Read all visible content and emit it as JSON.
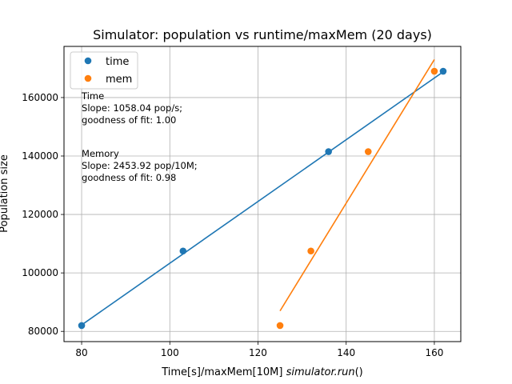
{
  "chart_data": {
    "type": "scatter",
    "title": "Simulator: population vs runtime/maxMem (20 days)",
    "xlabel_prefix": "Time[s]/maxMem[10M] ",
    "xlabel_italic": "simulator.run",
    "xlabel_suffix": "()",
    "ylabel": "Population size",
    "xlim": [
      76,
      166
    ],
    "ylim": [
      76500,
      177500
    ],
    "xticks": [
      80,
      100,
      120,
      140,
      160
    ],
    "yticks": [
      80000,
      100000,
      120000,
      140000,
      160000
    ],
    "grid": true,
    "legend_position": "top-left",
    "series": [
      {
        "name": "time",
        "color": "#1f77b4",
        "points": [
          {
            "x": 80,
            "y": 82000
          },
          {
            "x": 103,
            "y": 107500
          },
          {
            "x": 136,
            "y": 141500
          },
          {
            "x": 162,
            "y": 169000
          }
        ],
        "fit_line": {
          "x": [
            80,
            162
          ],
          "y": [
            82200,
            168800
          ]
        }
      },
      {
        "name": "mem",
        "color": "#ff7f0e",
        "points": [
          {
            "x": 125,
            "y": 82000
          },
          {
            "x": 132,
            "y": 107500
          },
          {
            "x": 145,
            "y": 141500
          },
          {
            "x": 160,
            "y": 169000
          }
        ],
        "fit_line": {
          "x": [
            125,
            160
          ],
          "y": [
            87000,
            173000
          ]
        }
      }
    ],
    "annotations": [
      {
        "lines": [
          "Time",
          "Slope: 1058.04 pop/s;",
          "goodness of fit: 1.00"
        ],
        "x": 80,
        "y": 159500
      },
      {
        "lines": [
          "Memory",
          "Slope: 2453.92 pop/10M;",
          "goodness of fit: 0.98"
        ],
        "x": 80,
        "y": 139700
      }
    ]
  }
}
